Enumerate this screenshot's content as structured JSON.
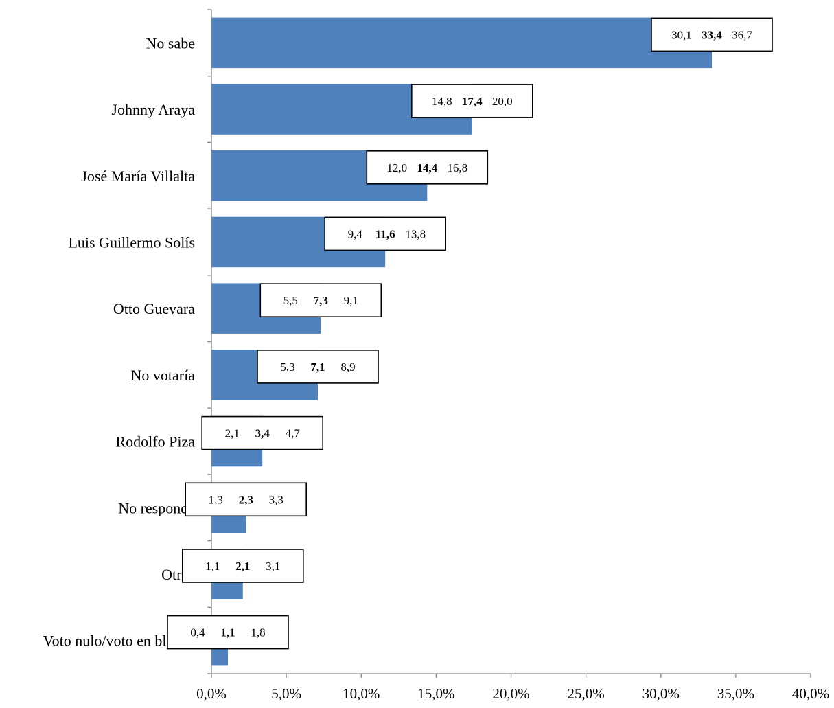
{
  "chart_data": {
    "type": "bar",
    "orientation": "horizontal",
    "title": "",
    "xlabel": "",
    "ylabel": "",
    "xlim": [
      0,
      40
    ],
    "x_ticks": [
      "0,0%",
      "5,0%",
      "10,0%",
      "15,0%",
      "20,0%",
      "25,0%",
      "30,0%",
      "35,0%",
      "40,0%"
    ],
    "bar_color": "#4F81BD",
    "grid": false,
    "legend": "none",
    "categories": [
      "No sabe",
      "Johnny Araya",
      "José María Villalta",
      "Luis Guillermo Solís",
      "Otto Guevara",
      "No votaría",
      "Rodolfo Piza",
      "No responde",
      "Otros",
      "Voto nulo/voto en blanco"
    ],
    "values": [
      33.4,
      17.4,
      14.4,
      11.6,
      7.3,
      7.1,
      3.4,
      2.3,
      2.1,
      1.1
    ],
    "annotations": [
      {
        "low": "30,1",
        "point": "33,4",
        "high": "36,7"
      },
      {
        "low": "14,8",
        "point": "17,4",
        "high": "20,0"
      },
      {
        "low": "12,0",
        "point": "14,4",
        "high": "16,8"
      },
      {
        "low": "9,4",
        "point": "11,6",
        "high": "13,8"
      },
      {
        "low": "5,5",
        "point": "7,3",
        "high": "9,1"
      },
      {
        "low": "5,3",
        "point": "7,1",
        "high": "8,9"
      },
      {
        "low": "2,1",
        "point": "3,4",
        "high": "4,7"
      },
      {
        "low": "1,3",
        "point": "2,3",
        "high": "3,3"
      },
      {
        "low": "1,1",
        "point": "2,1",
        "high": "3,1"
      },
      {
        "low": "0,4",
        "point": "1,1",
        "high": "1,8"
      }
    ],
    "ci_low": [
      30.1,
      14.8,
      12.0,
      9.4,
      5.5,
      5.3,
      2.1,
      1.3,
      1.1,
      0.4
    ],
    "ci_high": [
      36.7,
      20.0,
      16.8,
      13.8,
      9.1,
      8.9,
      4.7,
      3.3,
      3.1,
      1.8
    ]
  }
}
